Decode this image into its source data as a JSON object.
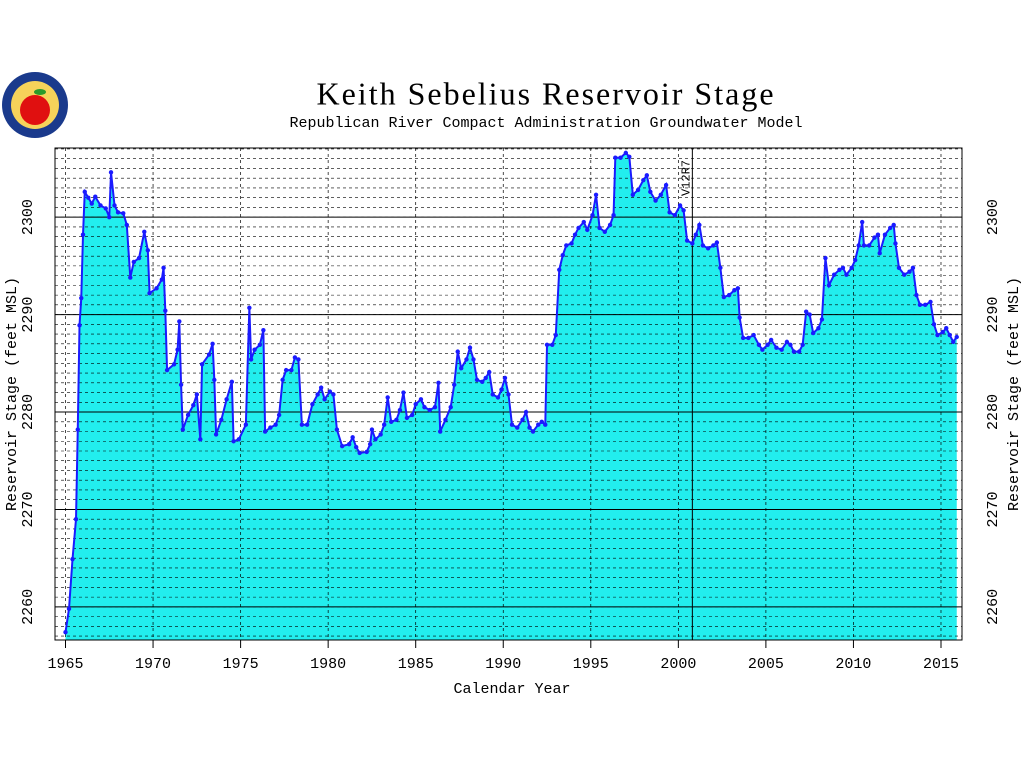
{
  "chart_data": {
    "type": "area",
    "title": "Keith Sebelius Reservoir Stage",
    "subtitle": "Republican River Compact Administration Groundwater Model",
    "x_label": "Calendar Year",
    "y_label": "Reservoir Stage (feet MSL)",
    "xlim": [
      1964.4,
      2016.2
    ],
    "xticks": [
      1965,
      1970,
      1975,
      1980,
      1985,
      1990,
      1995,
      2000,
      2005,
      2010,
      2015
    ],
    "ylim": [
      2256.6,
      2307.1
    ],
    "yticks": [
      2260,
      2270,
      2280,
      2290,
      2300
    ],
    "minor_grid_step": 1,
    "grid": true,
    "reference_line": {
      "x": 2000.8,
      "label": "V12R7"
    },
    "x": [
      1965.0,
      1965.2,
      1965.4,
      1965.6,
      1965.7,
      1965.8,
      1965.9,
      1966.0,
      1966.1,
      1966.3,
      1966.5,
      1966.7,
      1967.0,
      1967.3,
      1967.5,
      1967.6,
      1967.8,
      1968.0,
      1968.3,
      1968.5,
      1968.7,
      1968.9,
      1969.2,
      1969.5,
      1969.7,
      1969.8,
      1970.2,
      1970.5,
      1970.6,
      1970.7,
      1970.8,
      1971.2,
      1971.4,
      1971.5,
      1971.6,
      1971.7,
      1972.0,
      1972.3,
      1972.5,
      1972.7,
      1972.8,
      1973.2,
      1973.4,
      1973.5,
      1973.6,
      1973.9,
      1974.2,
      1974.5,
      1974.6,
      1974.9,
      1975.3,
      1975.5,
      1975.6,
      1975.8,
      1976.1,
      1976.3,
      1976.4,
      1976.7,
      1977.0,
      1977.2,
      1977.4,
      1977.6,
      1977.9,
      1978.1,
      1978.3,
      1978.5,
      1978.8,
      1979.1,
      1979.4,
      1979.6,
      1979.8,
      1980.1,
      1980.3,
      1980.5,
      1980.8,
      1981.2,
      1981.4,
      1981.6,
      1981.8,
      1982.2,
      1982.4,
      1982.5,
      1982.7,
      1983.0,
      1983.2,
      1983.4,
      1983.6,
      1983.9,
      1984.1,
      1984.3,
      1984.5,
      1984.8,
      1985.0,
      1985.3,
      1985.5,
      1985.8,
      1986.1,
      1986.3,
      1986.4,
      1986.7,
      1987.0,
      1987.2,
      1987.4,
      1987.6,
      1987.9,
      1988.1,
      1988.3,
      1988.5,
      1988.8,
      1989.0,
      1989.2,
      1989.4,
      1989.7,
      1989.9,
      1990.1,
      1990.3,
      1990.5,
      1990.8,
      1991.1,
      1991.3,
      1991.5,
      1991.7,
      1992.0,
      1992.2,
      1992.4,
      1992.5,
      1992.8,
      1993.0,
      1993.2,
      1993.4,
      1993.6,
      1993.9,
      1994.1,
      1994.3,
      1994.6,
      1994.8,
      1995.1,
      1995.3,
      1995.5,
      1995.8,
      1996.1,
      1996.3,
      1996.4,
      1996.7,
      1997.0,
      1997.2,
      1997.4,
      1997.7,
      1998.0,
      1998.2,
      1998.4,
      1998.7,
      1999.0,
      1999.3,
      1999.5,
      1999.8,
      2000.1,
      2000.3,
      2000.5,
      2000.8,
      2001.0,
      2001.2,
      2001.4,
      2001.7,
      2002.0,
      2002.2,
      2002.4,
      2002.6,
      2002.9,
      2003.2,
      2003.4,
      2003.5,
      2003.7,
      2004.0,
      2004.3,
      2004.6,
      2004.8,
      2005.1,
      2005.3,
      2005.6,
      2005.9,
      2006.2,
      2006.4,
      2006.6,
      2006.9,
      2007.1,
      2007.3,
      2007.5,
      2007.7,
      2008.0,
      2008.2,
      2008.4,
      2008.6,
      2008.9,
      2009.2,
      2009.4,
      2009.6,
      2009.9,
      2010.1,
      2010.3,
      2010.5,
      2010.6,
      2010.9,
      2011.2,
      2011.4,
      2011.5,
      2011.8,
      2012.1,
      2012.3,
      2012.4,
      2012.6,
      2012.9,
      2013.2,
      2013.4,
      2013.6,
      2013.8,
      2014.1,
      2014.4,
      2014.6,
      2014.8,
      2015.1,
      2015.3,
      2015.5,
      2015.7,
      2015.9
    ],
    "series": [
      {
        "color": "#1a1aff",
        "fill": "#22eeee",
        "values": [
          2257.4,
          2259.8,
          2264.9,
          2269.0,
          2278.2,
          2288.9,
          2291.7,
          2298.2,
          2302.6,
          2302.0,
          2301.4,
          2302.1,
          2301.2,
          2300.9,
          2300.0,
          2304.6,
          2301.2,
          2300.5,
          2300.4,
          2299.2,
          2293.8,
          2295.4,
          2295.8,
          2298.5,
          2296.6,
          2292.2,
          2292.7,
          2293.6,
          2294.8,
          2290.4,
          2284.3,
          2284.9,
          2286.4,
          2289.3,
          2282.8,
          2278.2,
          2279.7,
          2280.7,
          2281.8,
          2277.2,
          2284.9,
          2285.9,
          2287.0,
          2283.3,
          2277.7,
          2279.2,
          2281.3,
          2283.1,
          2277.0,
          2277.2,
          2278.7,
          2290.7,
          2285.4,
          2286.4,
          2286.9,
          2288.4,
          2278.0,
          2278.4,
          2278.7,
          2279.7,
          2283.3,
          2284.3,
          2284.3,
          2285.6,
          2285.4,
          2278.7,
          2278.7,
          2280.8,
          2281.8,
          2282.5,
          2281.3,
          2282.1,
          2281.8,
          2278.2,
          2276.5,
          2276.7,
          2277.4,
          2276.4,
          2275.8,
          2275.9,
          2276.7,
          2278.2,
          2277.2,
          2277.7,
          2278.7,
          2281.5,
          2279.0,
          2279.2,
          2280.2,
          2282.0,
          2279.4,
          2279.7,
          2280.8,
          2281.3,
          2280.5,
          2280.2,
          2280.5,
          2283.0,
          2278.0,
          2279.2,
          2280.5,
          2282.8,
          2286.2,
          2284.5,
          2285.4,
          2286.6,
          2285.4,
          2283.3,
          2283.1,
          2283.5,
          2284.1,
          2281.8,
          2281.5,
          2282.3,
          2283.5,
          2281.8,
          2278.7,
          2278.4,
          2279.2,
          2280.0,
          2278.4,
          2278.0,
          2278.7,
          2279.0,
          2278.7,
          2286.9,
          2286.9,
          2287.9,
          2294.6,
          2296.1,
          2297.1,
          2297.3,
          2298.2,
          2298.9,
          2299.5,
          2298.7,
          2300.2,
          2302.3,
          2298.9,
          2298.5,
          2299.2,
          2300.2,
          2306.1,
          2306.1,
          2306.6,
          2306.2,
          2302.3,
          2302.8,
          2303.8,
          2304.3,
          2302.6,
          2301.7,
          2302.3,
          2303.3,
          2300.5,
          2300.2,
          2301.2,
          2300.7,
          2297.6,
          2297.3,
          2298.2,
          2299.2,
          2297.1,
          2296.8,
          2297.1,
          2297.4,
          2294.8,
          2291.8,
          2292.0,
          2292.5,
          2292.7,
          2289.7,
          2287.6,
          2287.6,
          2287.9,
          2286.9,
          2286.4,
          2286.9,
          2287.4,
          2286.6,
          2286.4,
          2287.2,
          2286.9,
          2286.2,
          2286.2,
          2286.9,
          2290.3,
          2290.0,
          2288.1,
          2288.6,
          2289.5,
          2295.8,
          2293.0,
          2294.1,
          2294.6,
          2294.8,
          2294.1,
          2294.8,
          2295.6,
          2297.1,
          2299.5,
          2297.1,
          2297.1,
          2297.9,
          2298.2,
          2296.3,
          2298.2,
          2298.9,
          2299.2,
          2297.3,
          2294.8,
          2294.1,
          2294.4,
          2294.8,
          2292.0,
          2291.0,
          2291.0,
          2291.3,
          2289.0,
          2287.9,
          2288.2,
          2288.6,
          2287.9,
          2287.2,
          2287.7
        ]
      }
    ]
  }
}
